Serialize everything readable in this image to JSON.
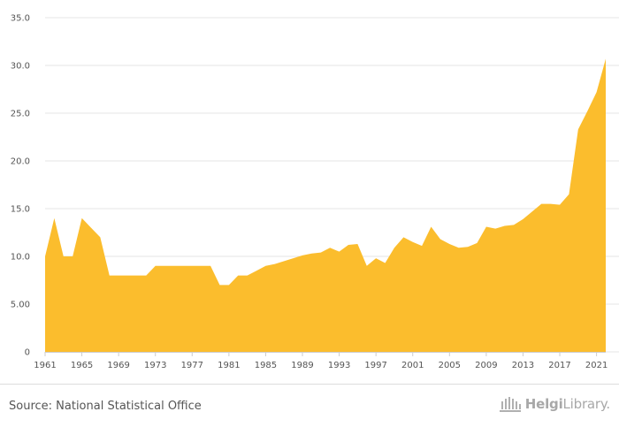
{
  "chart_data": {
    "type": "area",
    "x": [
      1961,
      1962,
      1963,
      1964,
      1965,
      1966,
      1967,
      1968,
      1969,
      1970,
      1971,
      1972,
      1973,
      1974,
      1975,
      1976,
      1977,
      1978,
      1979,
      1980,
      1981,
      1982,
      1983,
      1984,
      1985,
      1986,
      1987,
      1988,
      1989,
      1990,
      1991,
      1992,
      1993,
      1994,
      1995,
      1996,
      1997,
      1998,
      1999,
      2000,
      2001,
      2002,
      2003,
      2004,
      2005,
      2006,
      2007,
      2008,
      2009,
      2010,
      2011,
      2012,
      2013,
      2014,
      2015,
      2016,
      2017,
      2018,
      2019,
      2020,
      2021,
      2022
    ],
    "values": [
      10,
      14,
      10,
      10,
      14,
      13,
      12,
      8,
      8,
      8,
      8,
      8,
      9,
      9,
      9,
      9,
      9,
      9,
      9,
      7,
      7,
      8,
      8,
      8.5,
      9,
      9.2,
      9.5,
      9.8,
      10.1,
      10.3,
      10.4,
      10.9,
      10.5,
      11.2,
      11.3,
      9,
      9.8,
      9.3,
      10.9,
      12,
      11.5,
      11.1,
      13.1,
      11.8,
      11.3,
      10.9,
      11,
      11.4,
      13.1,
      12.9,
      13.2,
      13.3,
      13.9,
      14.7,
      15.5,
      15.5,
      15.4,
      16.5,
      23.3,
      25.2,
      27.2,
      30.7
    ],
    "x_ticks": [
      "1961",
      "1965",
      "1969",
      "1973",
      "1977",
      "1981",
      "1985",
      "1989",
      "1993",
      "1997",
      "2001",
      "2005",
      "2009",
      "2013",
      "2017",
      "2021"
    ],
    "y_ticks": [
      "0",
      "5.00",
      "10.0",
      "15.0",
      "20.0",
      "25.0",
      "30.0",
      "35.0"
    ],
    "ylim": [
      0,
      35
    ],
    "grid": true,
    "fill_color": "#fbbd2d"
  },
  "footer": {
    "source": "Source: National Statistical Office",
    "logo_brand": "Helgi",
    "logo_rest": "Library."
  }
}
